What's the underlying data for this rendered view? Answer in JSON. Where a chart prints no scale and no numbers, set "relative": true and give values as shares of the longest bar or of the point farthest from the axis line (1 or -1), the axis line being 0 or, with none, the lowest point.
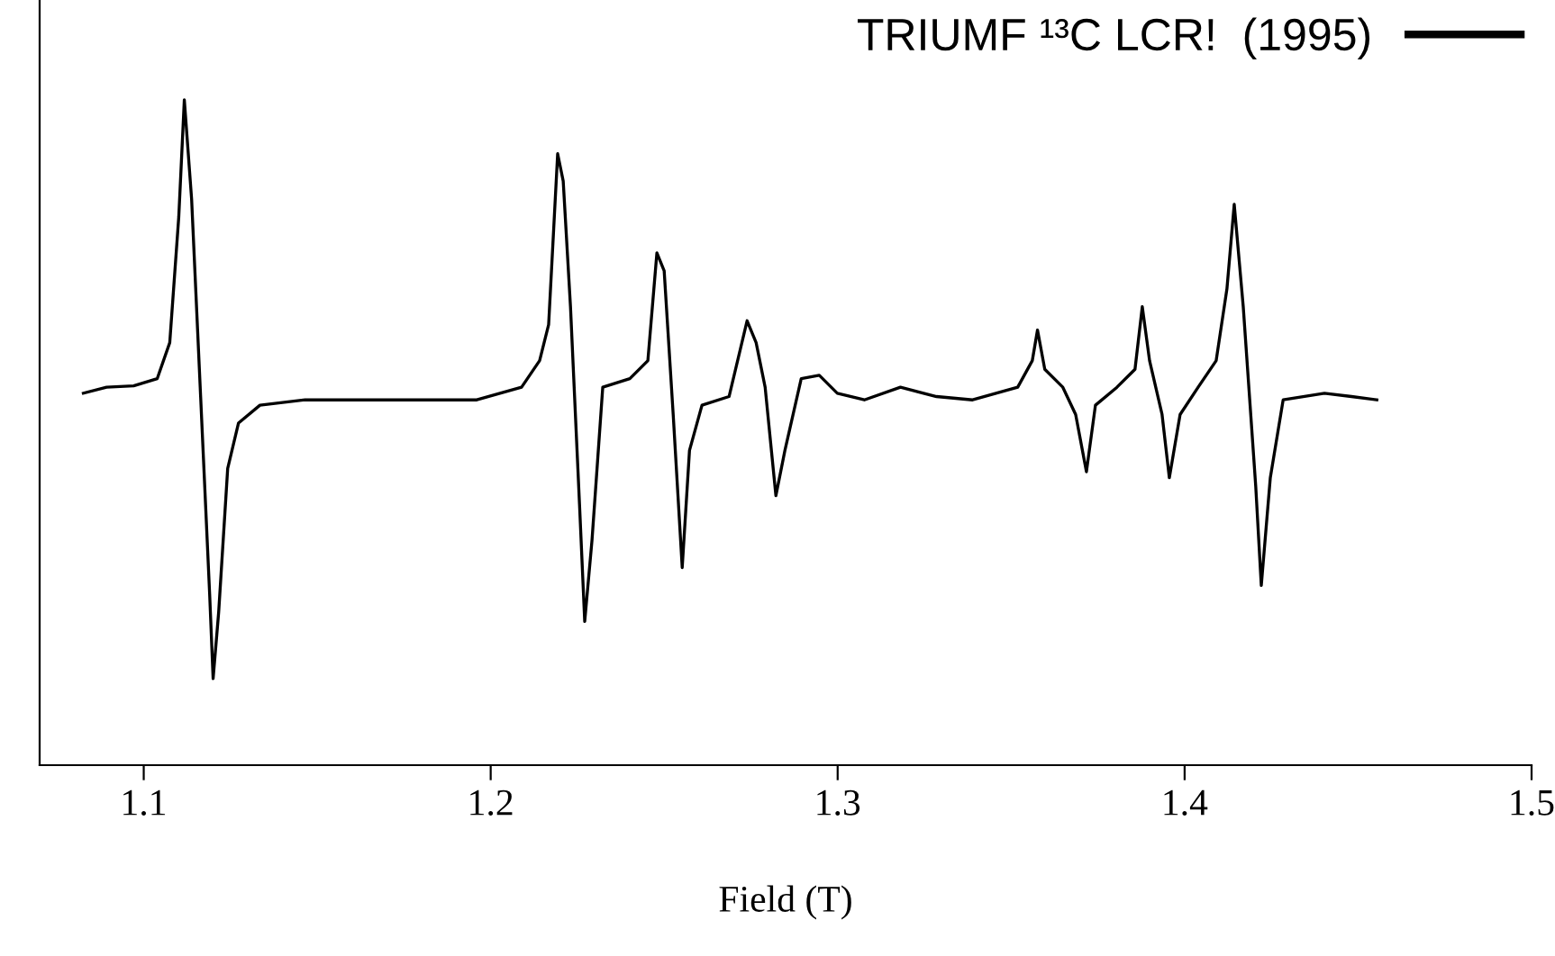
{
  "chart_data": {
    "type": "line",
    "xlabel": "Field (T)",
    "relative": true,
    "xlim": [
      1.07,
      1.5
    ],
    "xticks": [
      1.1,
      1.2,
      1.3,
      1.4,
      1.5
    ],
    "legend": "top right",
    "grid": false,
    "marker": "none",
    "line_style": "solid",
    "series": [
      {
        "name": "TRIUMF ¹³C LCR!  (1995)",
        "color": "#000000",
        "x": [
          1.0826,
          1.0893,
          1.0971,
          1.1039,
          1.1075,
          1.1101,
          1.1117,
          1.1138,
          1.1164,
          1.119,
          1.12,
          1.1216,
          1.1242,
          1.1273,
          1.1335,
          1.1465,
          1.1726,
          1.196,
          1.2089,
          1.2141,
          1.2167,
          1.2193,
          1.2209,
          1.223,
          1.2256,
          1.2271,
          1.2292,
          1.2323,
          1.2401,
          1.2453,
          1.2479,
          1.25,
          1.2526,
          1.2552,
          1.2573,
          1.2609,
          1.2687,
          1.2739,
          1.2765,
          1.2791,
          1.2822,
          1.2848,
          1.2895,
          1.2947,
          1.2999,
          1.3077,
          1.3181,
          1.3285,
          1.3389,
          1.3519,
          1.3561,
          1.3576,
          1.3597,
          1.3649,
          1.3686,
          1.3717,
          1.3743,
          1.3805,
          1.3857,
          1.3878,
          1.3899,
          1.3935,
          1.3956,
          1.3987,
          1.4039,
          1.4091,
          1.4122,
          1.4143,
          1.4169,
          1.4205,
          1.4221,
          1.4247,
          1.4284,
          1.4403,
          1.4481,
          1.4554
        ],
        "values": [
          0.559,
          0.568,
          0.57,
          0.581,
          0.635,
          0.824,
          1.0,
          0.851,
          0.554,
          0.257,
          0.13,
          0.23,
          0.446,
          0.514,
          0.541,
          0.549,
          0.549,
          0.549,
          0.568,
          0.608,
          0.662,
          0.919,
          0.878,
          0.689,
          0.392,
          0.216,
          0.338,
          0.568,
          0.581,
          0.608,
          0.77,
          0.743,
          0.527,
          0.297,
          0.473,
          0.541,
          0.554,
          0.668,
          0.635,
          0.568,
          0.405,
          0.473,
          0.581,
          0.586,
          0.559,
          0.549,
          0.568,
          0.554,
          0.549,
          0.568,
          0.608,
          0.654,
          0.595,
          0.568,
          0.527,
          0.441,
          0.541,
          0.568,
          0.595,
          0.689,
          0.608,
          0.527,
          0.432,
          0.527,
          0.568,
          0.608,
          0.716,
          0.843,
          0.689,
          0.419,
          0.27,
          0.432,
          0.549,
          0.559,
          0.554,
          0.549
        ]
      }
    ]
  }
}
